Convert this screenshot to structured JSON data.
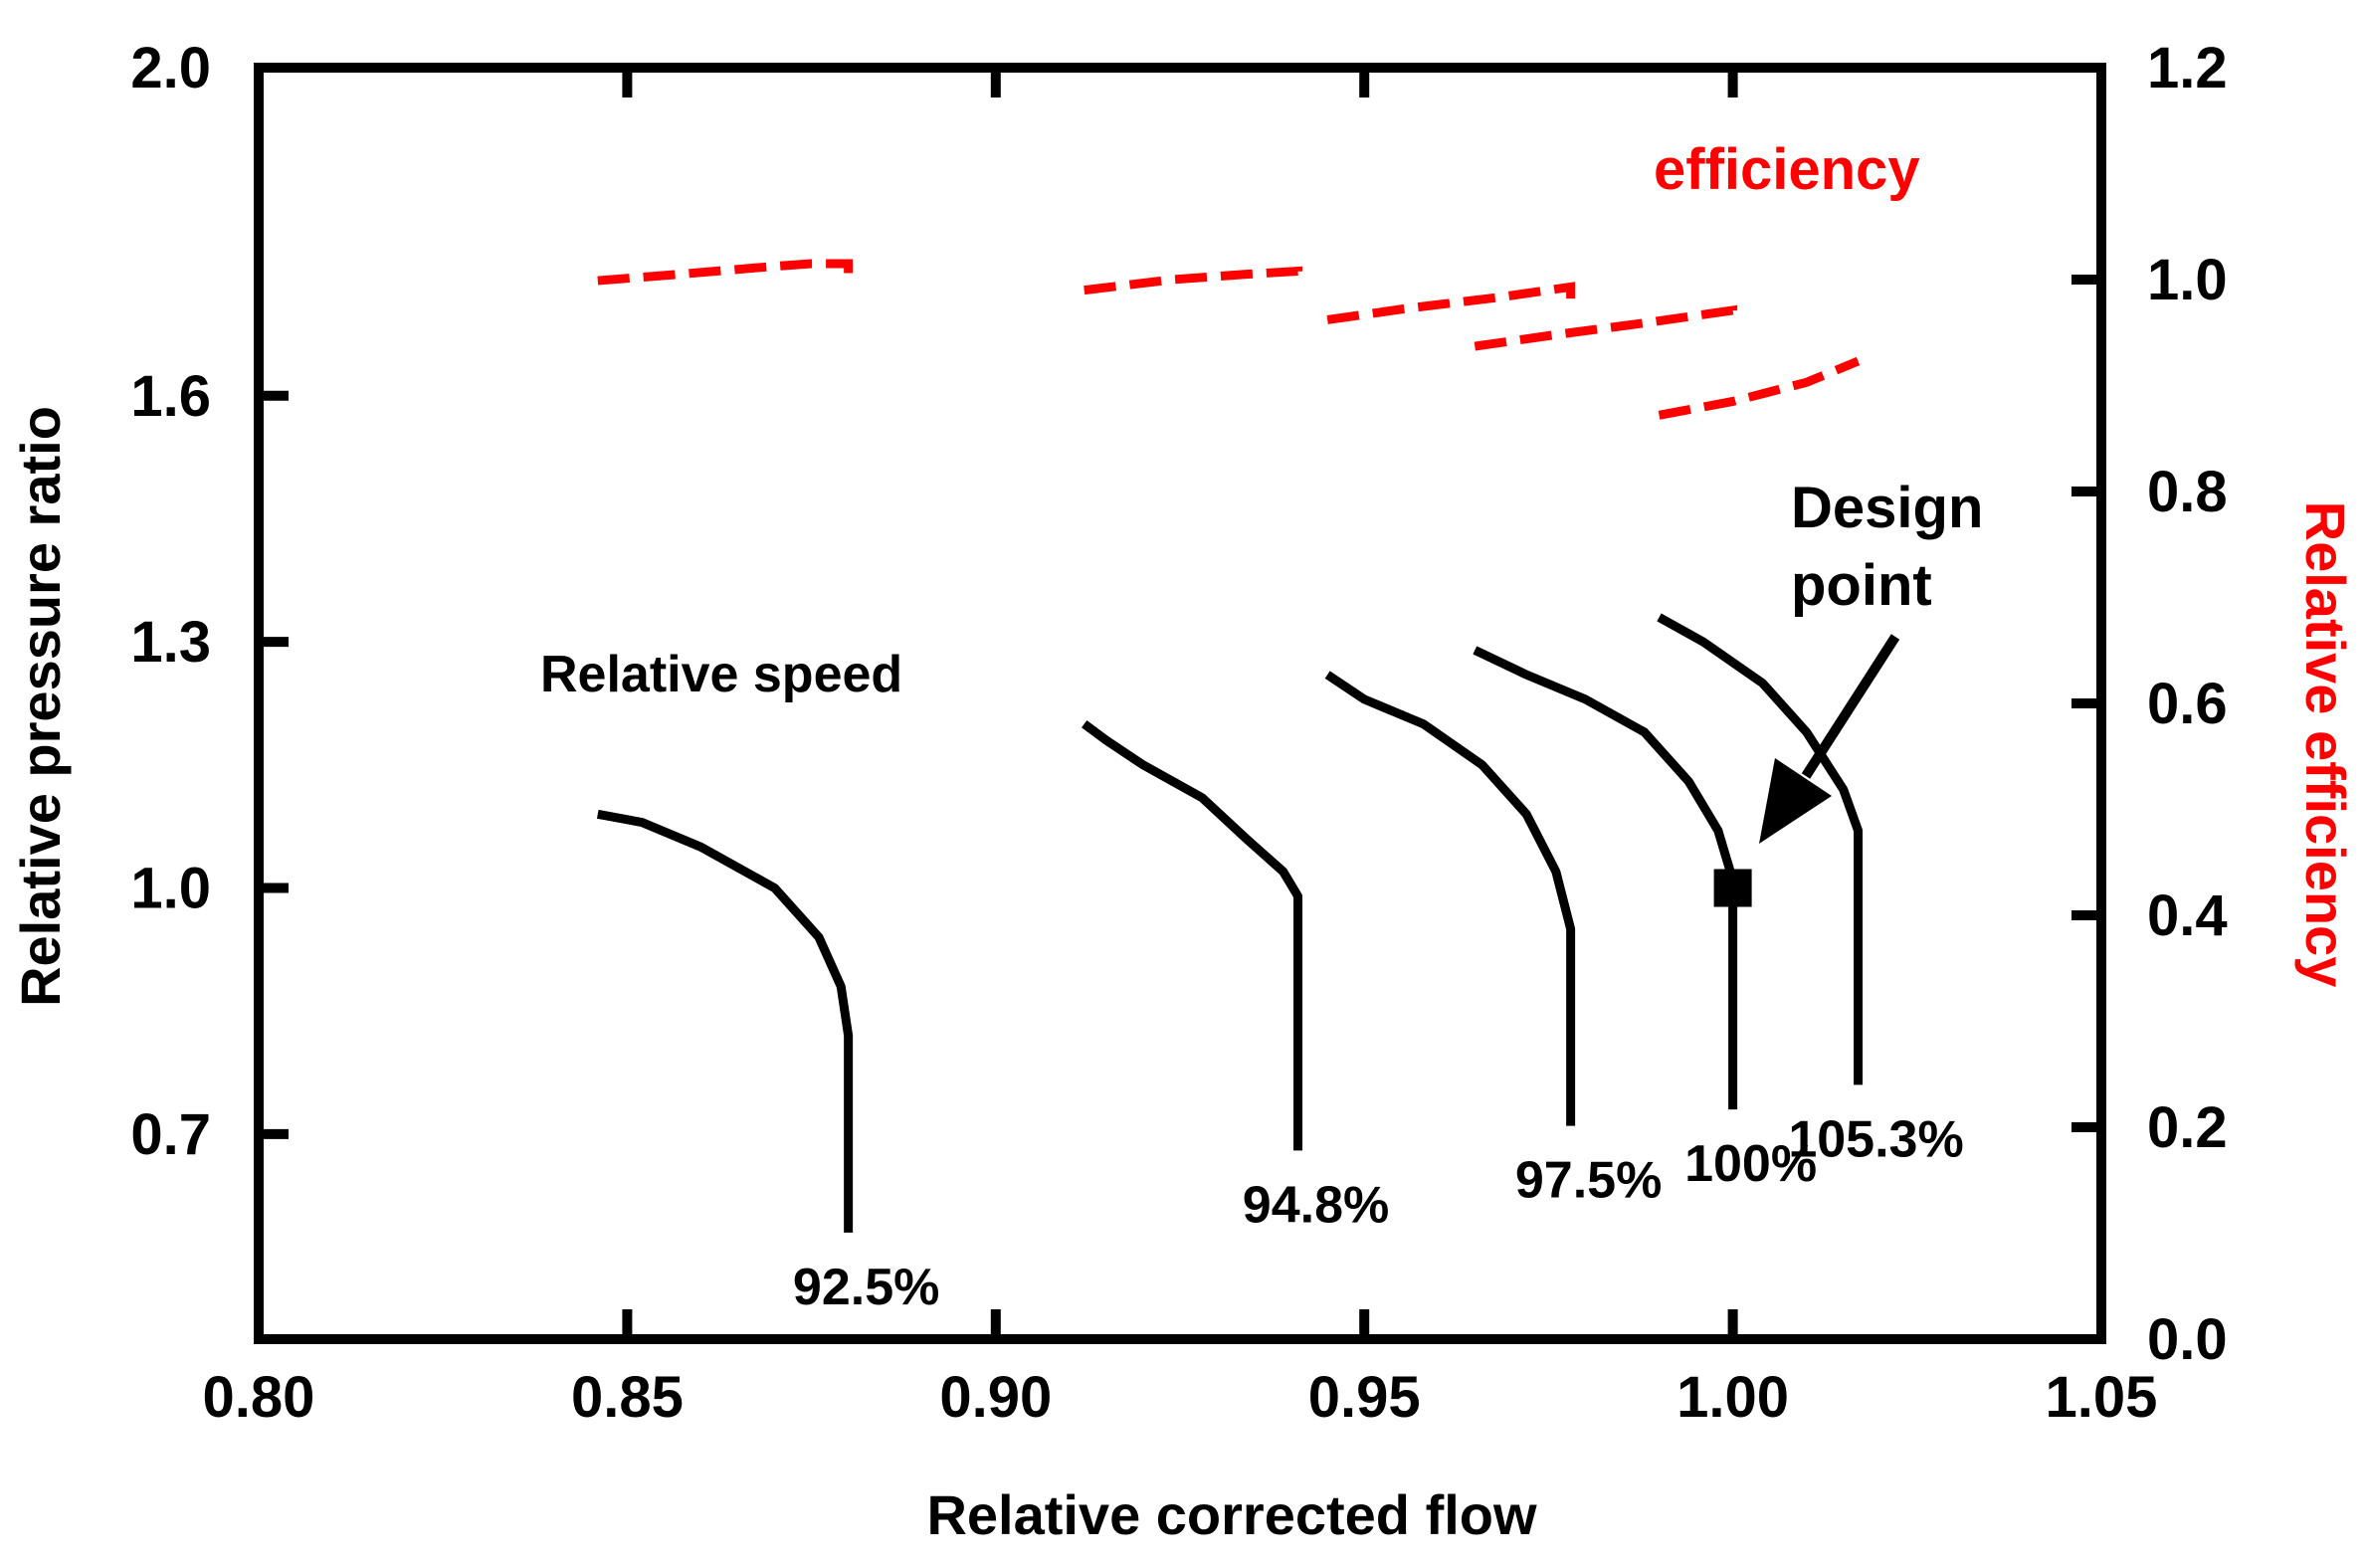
{
  "chart_data": {
    "type": "line",
    "xlabel": "Relative corrected flow",
    "ylabel": "Relative pressure ratio",
    "y2label": "Relative efficiency",
    "xlim": [
      0.8,
      1.05
    ],
    "ylim": [
      0.45,
      2.0
    ],
    "y2lim": [
      0.0,
      1.2
    ],
    "x_ticks": [
      "0.80",
      "0.85",
      "0.90",
      "0.95",
      "1.00",
      "1.05"
    ],
    "y_ticks": [
      {
        "value": 0.7,
        "label": "0.7"
      },
      {
        "value": 1.0,
        "label": "1.0"
      },
      {
        "value": 1.3,
        "label": "1.3"
      },
      {
        "value": 1.6,
        "label": "1.6"
      },
      {
        "value": 2.0,
        "label": "2.0"
      }
    ],
    "y2_ticks": [
      "0.0",
      "0.2",
      "0.4",
      "0.6",
      "0.8",
      "1.0",
      "1.2"
    ],
    "grid": false,
    "colors": {
      "pressure": "#000000",
      "efficiency": "#ff0000",
      "axis": "#000000"
    },
    "annotations": {
      "relative_speed": "Relative speed",
      "efficiency": "efficiency",
      "design_point_line1": "Design",
      "design_point_line2": "point"
    },
    "design_point": {
      "x": 1.0,
      "y": 1.0
    },
    "speed_lines": [
      {
        "name": "92.5%",
        "points": [
          [
            0.846,
            1.09
          ],
          [
            0.852,
            1.08
          ],
          [
            0.86,
            1.05
          ],
          [
            0.87,
            1.0
          ],
          [
            0.876,
            0.94
          ],
          [
            0.879,
            0.88
          ],
          [
            0.88,
            0.82
          ],
          [
            0.88,
            0.58
          ]
        ]
      },
      {
        "name": "94.8%",
        "points": [
          [
            0.912,
            1.2
          ],
          [
            0.915,
            1.18
          ],
          [
            0.92,
            1.15
          ],
          [
            0.928,
            1.11
          ],
          [
            0.934,
            1.06
          ],
          [
            0.939,
            1.02
          ],
          [
            0.941,
            0.99
          ],
          [
            0.941,
            0.68
          ]
        ]
      },
      {
        "name": "97.5%",
        "points": [
          [
            0.945,
            1.26
          ],
          [
            0.95,
            1.23
          ],
          [
            0.958,
            1.2
          ],
          [
            0.966,
            1.15
          ],
          [
            0.972,
            1.09
          ],
          [
            0.976,
            1.02
          ],
          [
            0.978,
            0.95
          ],
          [
            0.978,
            0.71
          ]
        ]
      },
      {
        "name": "100%",
        "points": [
          [
            0.965,
            1.29
          ],
          [
            0.972,
            1.26
          ],
          [
            0.98,
            1.23
          ],
          [
            0.988,
            1.19
          ],
          [
            0.994,
            1.13
          ],
          [
            0.998,
            1.07
          ],
          [
            1.0,
            1.01
          ],
          [
            1.0,
            0.73
          ]
        ]
      },
      {
        "name": "105.3%",
        "points": [
          [
            0.99,
            1.33
          ],
          [
            0.996,
            1.3
          ],
          [
            1.004,
            1.25
          ],
          [
            1.01,
            1.19
          ],
          [
            1.015,
            1.12
          ],
          [
            1.017,
            1.07
          ],
          [
            1.017,
            0.76
          ]
        ]
      }
    ],
    "efficiency_lines": [
      {
        "points": [
          [
            0.846,
            0.999
          ],
          [
            0.857,
            1.005
          ],
          [
            0.869,
            1.012
          ],
          [
            0.875,
            1.015
          ],
          [
            0.88,
            1.015
          ],
          [
            0.88,
            1.005
          ]
        ]
      },
      {
        "points": [
          [
            0.912,
            0.99
          ],
          [
            0.924,
            1.0
          ],
          [
            0.934,
            1.005
          ],
          [
            0.941,
            1.008
          ],
          [
            0.941,
            0.998
          ]
        ]
      },
      {
        "points": [
          [
            0.945,
            0.962
          ],
          [
            0.956,
            0.973
          ],
          [
            0.968,
            0.983
          ],
          [
            0.978,
            0.993
          ],
          [
            0.978,
            0.982
          ]
        ]
      },
      {
        "points": [
          [
            0.965,
            0.937
          ],
          [
            0.976,
            0.948
          ],
          [
            0.988,
            0.959
          ],
          [
            1.0,
            0.971
          ],
          [
            1.0,
            0.96
          ]
        ]
      },
      {
        "points": [
          [
            0.99,
            0.872
          ],
          [
            1.0,
            0.885
          ],
          [
            1.01,
            0.903
          ],
          [
            1.017,
            0.923
          ]
        ]
      }
    ]
  }
}
